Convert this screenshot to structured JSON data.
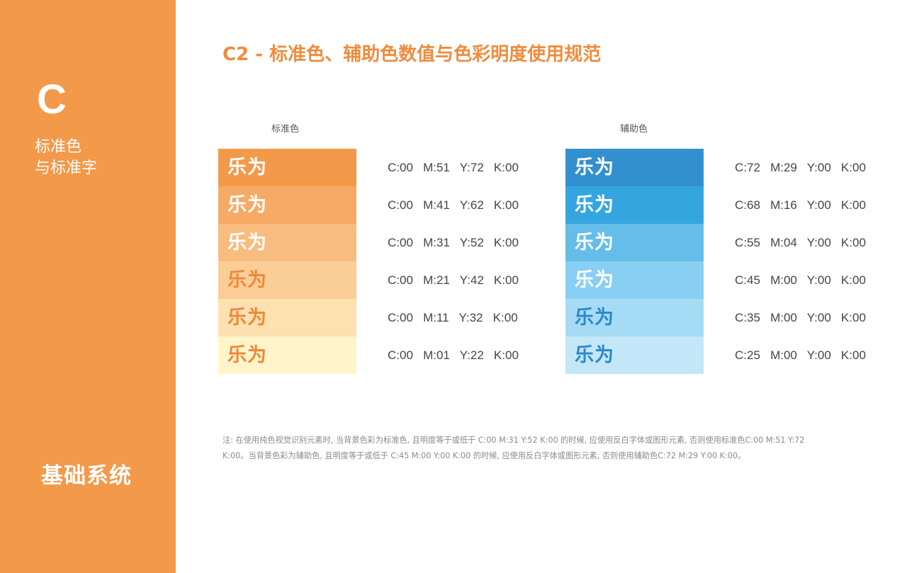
{
  "sidebar": {
    "letter": "C",
    "name_line1": "标准色",
    "name_line2": "与标准字",
    "system_title": "基础系统"
  },
  "title": "C2 - 标准色、辅助色数值与色彩明度使用规范",
  "standard": {
    "label": "标准色",
    "logo_text": "乐为",
    "rows": [
      {
        "cmyk": "C:00   M:51   Y:72   K:00",
        "bg": "#f3994a",
        "fg": "#ffffff"
      },
      {
        "cmyk": "C:00   M:41   Y:62   K:00",
        "bg": "#f6aa65",
        "fg": "#ffffff"
      },
      {
        "cmyk": "C:00   M:31   Y:52   K:00",
        "bg": "#f8bc7f",
        "fg": "#ffffff"
      },
      {
        "cmyk": "C:00   M:21   Y:42   K:00",
        "bg": "#fbce98",
        "fg": "#f0883a"
      },
      {
        "cmyk": "C:00   M:11   Y:32   K:00",
        "bg": "#fde1b1",
        "fg": "#f0883a"
      },
      {
        "cmyk": "C:00   M:01   Y:22   K:00",
        "bg": "#fff5ca",
        "fg": "#f0883a"
      }
    ]
  },
  "auxiliary": {
    "label": "辅助色",
    "logo_text": "乐为",
    "rows": [
      {
        "cmyk": "C:72   M:29   Y:00   K:00",
        "bg": "#3290d0",
        "fg": "#ffffff"
      },
      {
        "cmyk": "C:68   M:16   Y:00   K:00",
        "bg": "#35a5e0",
        "fg": "#ffffff"
      },
      {
        "cmyk": "C:55   M:04   Y:00   K:00",
        "bg": "#65bde9",
        "fg": "#ffffff"
      },
      {
        "cmyk": "C:45   M:00   Y:00   K:00",
        "bg": "#89cff3",
        "fg": "#ffffff"
      },
      {
        "cmyk": "C:35   M:00   Y:00   K:00",
        "bg": "#a6dbf6",
        "fg": "#2d88cb"
      },
      {
        "cmyk": "C:25   M:00   Y:00   K:00",
        "bg": "#c3e6f9",
        "fg": "#2d88cb"
      }
    ]
  },
  "note": {
    "line1": "注: 在使用纯色视觉识别元素时, 当背景色彩为标准色, 且明度等于或低于  C:00  M:31  Y:52  K:00  的时候, 应使用反白字体或图形元素, 否则使用标准色C:00  M:51  Y:72",
    "line2": "K:00。当背景色彩为辅助色, 且明度等于或低于  C:45  M:00 Y:00  K:00  的时候, 应使用反白字体或图形元素, 否则使用辅助色C:72  M:29  Y:00  K:00。"
  }
}
